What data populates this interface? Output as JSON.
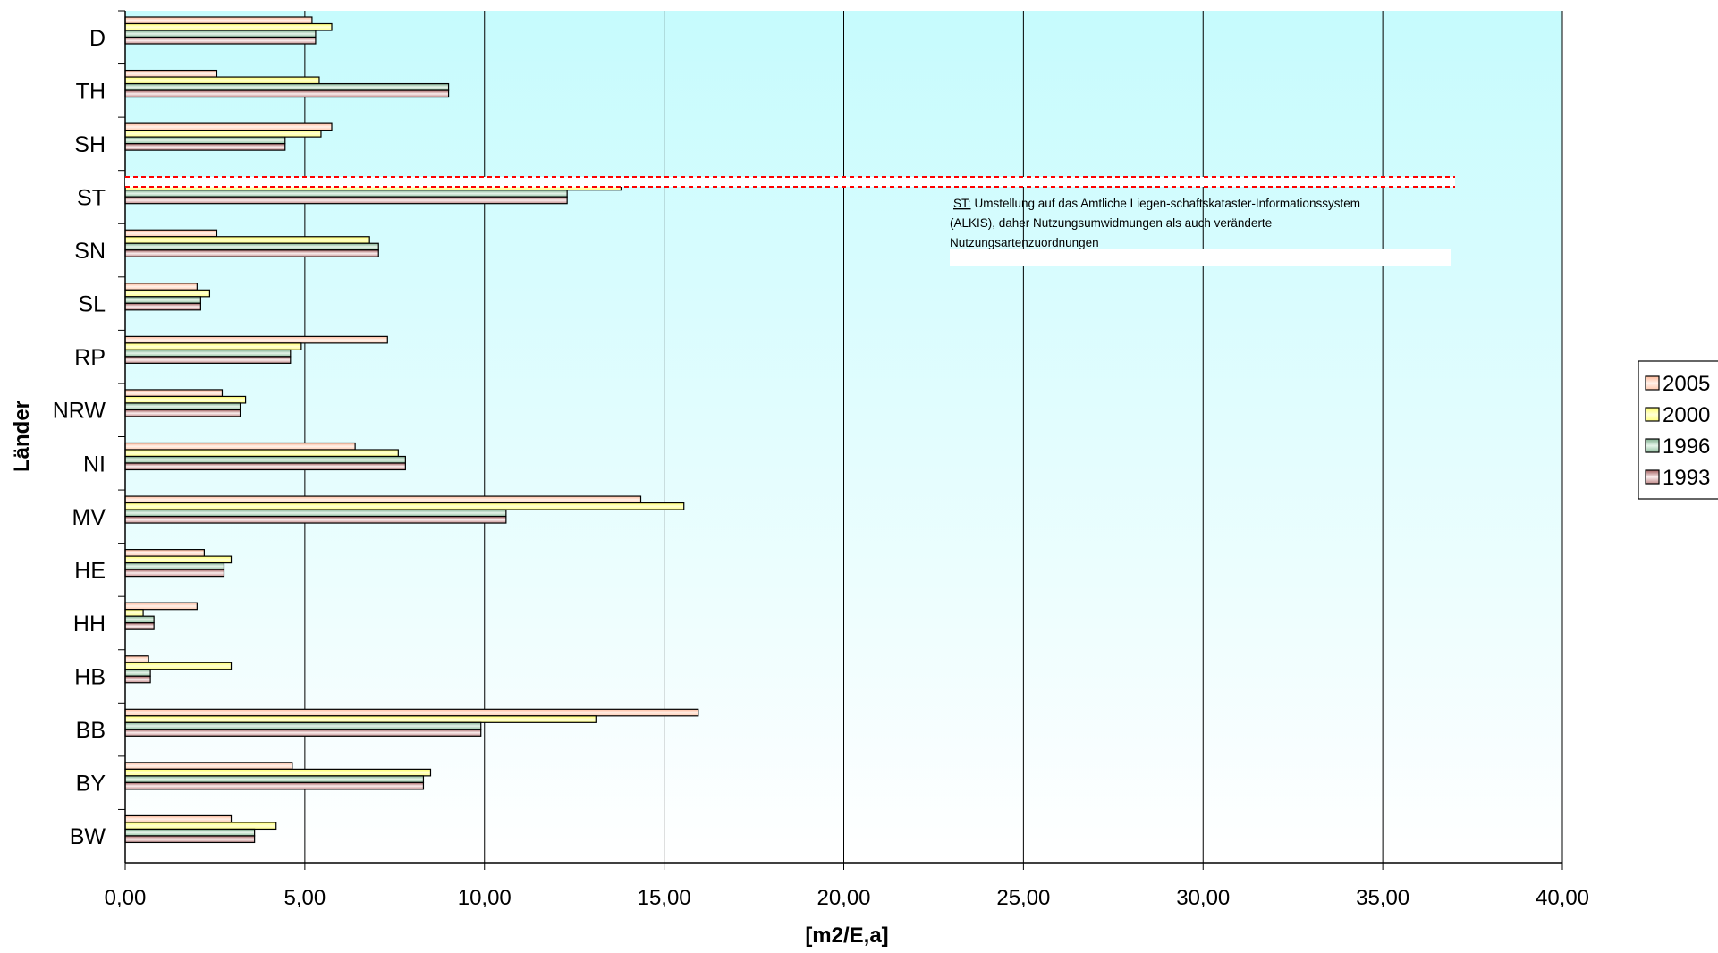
{
  "chart_data": {
    "type": "bar",
    "orientation": "horizontal",
    "xlabel": "[m2/E,a]",
    "ylabel": "Länder",
    "xlim": [
      0,
      40
    ],
    "xticks": [
      "0,00",
      "5,00",
      "10,00",
      "15,00",
      "20,00",
      "25,00",
      "30,00",
      "35,00",
      "40,00"
    ],
    "categories": [
      "D",
      "TH",
      "SH",
      "ST",
      "SN",
      "SL",
      "RP",
      "NRW",
      "NI",
      "MV",
      "HE",
      "HH",
      "HB",
      "BB",
      "BY",
      "BW"
    ],
    "series": [
      {
        "name": "2005",
        "color": "#ffdcc8",
        "values": [
          5.2,
          2.55,
          5.75,
          null,
          2.55,
          2.0,
          7.3,
          2.7,
          6.4,
          14.35,
          2.2,
          2.0,
          0.65,
          15.95,
          4.65,
          2.95
        ]
      },
      {
        "name": "2000",
        "color": "#ffff99",
        "values": [
          5.75,
          5.4,
          5.45,
          13.8,
          6.8,
          2.35,
          4.9,
          3.35,
          7.6,
          15.55,
          2.95,
          0.5,
          2.95,
          13.1,
          8.5,
          4.2
        ]
      },
      {
        "name": "1996",
        "color": "#b8e0c4",
        "values": [
          5.3,
          9.0,
          4.45,
          12.3,
          7.05,
          2.1,
          4.6,
          3.2,
          7.8,
          10.6,
          2.75,
          0.8,
          0.7,
          9.9,
          8.3,
          3.6
        ]
      },
      {
        "name": "1993",
        "color": "#e8b8b8",
        "values": [
          5.3,
          9.0,
          4.45,
          12.3,
          7.05,
          2.1,
          4.6,
          3.2,
          7.8,
          10.6,
          2.75,
          0.8,
          0.7,
          9.9,
          8.3,
          3.6
        ]
      }
    ],
    "legend": "right",
    "grid": true,
    "annotation": {
      "prefix": "ST:",
      "lines": [
        "Umstellung auf das Amtliche Liegen-schaftskataster-Informationssystem",
        "(ALKIS), daher Nutzungsumwidmungen als auch veränderte",
        "Nutzungsartenzuordnungen"
      ]
    }
  }
}
